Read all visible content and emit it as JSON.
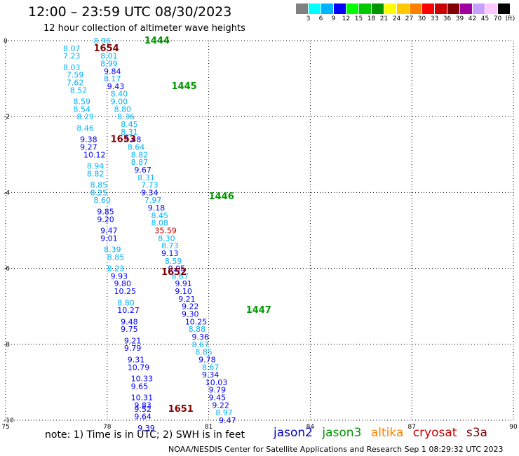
{
  "header": {
    "title": "12:00 – 23:59 UTC 08/30/2023",
    "subtitle": "12 hour collection of altimeter wave heights"
  },
  "color_scale": {
    "labels": [
      "3",
      "6",
      "9",
      "12",
      "15",
      "18",
      "21",
      "24",
      "27",
      "30",
      "33",
      "36",
      "39",
      "42",
      "45",
      "70",
      "(ft)"
    ],
    "colors": [
      "#808080",
      "#00ffff",
      "#00b4ff",
      "#0000ff",
      "#00ff00",
      "#00c800",
      "#009600",
      "#ffff00",
      "#ffc800",
      "#ff8000",
      "#ff0000",
      "#c80000",
      "#800000",
      "#a000a0",
      "#c8a0ff",
      "#ffc8ff",
      "#000000"
    ]
  },
  "axes": {
    "x_ticks": [
      "75",
      "78",
      "81",
      "84",
      "87",
      "90"
    ],
    "y_ticks": [
      "0",
      "-2",
      "-4",
      "-6",
      "-8",
      "-10"
    ]
  },
  "passes": [
    {
      "time": "1444",
      "color": "#009600",
      "lon": 79.1,
      "lat": 0.0
    },
    {
      "time": "1654",
      "color": "#800000",
      "lon": 77.6,
      "lat": -0.2
    },
    {
      "time": "1445",
      "color": "#009600",
      "lon": 79.9,
      "lat": -1.2
    },
    {
      "time": "1653",
      "color": "#800000",
      "lon": 78.1,
      "lat": -2.6
    },
    {
      "time": "1446",
      "color": "#009600",
      "lon": 81.0,
      "lat": -4.1
    },
    {
      "time": "1652",
      "color": "#800000",
      "lon": 79.6,
      "lat": -6.1
    },
    {
      "time": "1447",
      "color": "#009600",
      "lon": 82.1,
      "lat": -7.1
    },
    {
      "time": "1651",
      "color": "#800000",
      "lon": 79.8,
      "lat": -9.7
    }
  ],
  "tracks": [
    {
      "name": "track-1444",
      "points": [
        {
          "v": "8.96",
          "c": "#00b4ff",
          "lon": 77.6,
          "lat": 0.0
        },
        {
          "v": "8.01",
          "c": "#00b4ff",
          "lon": 77.8,
          "lat": -0.4
        },
        {
          "v": "8.99",
          "c": "#00b4ff",
          "lon": 77.8,
          "lat": -0.6
        },
        {
          "v": "9.84",
          "c": "#0000ff",
          "lon": 77.9,
          "lat": -0.8
        },
        {
          "v": "8.17",
          "c": "#00b4ff",
          "lon": 77.9,
          "lat": -1.0
        },
        {
          "v": "9.43",
          "c": "#0000ff",
          "lon": 78.0,
          "lat": -1.2
        },
        {
          "v": "8.40",
          "c": "#00b4ff",
          "lon": 78.1,
          "lat": -1.4
        },
        {
          "v": "9.00",
          "c": "#00b4ff",
          "lon": 78.1,
          "lat": -1.6
        },
        {
          "v": "8.80",
          "c": "#00b4ff",
          "lon": 78.2,
          "lat": -1.8
        },
        {
          "v": "8.36",
          "c": "#00b4ff",
          "lon": 78.3,
          "lat": -2.0
        },
        {
          "v": "8.45",
          "c": "#00b4ff",
          "lon": 78.4,
          "lat": -2.2
        },
        {
          "v": "8.31",
          "c": "#00b4ff",
          "lon": 78.4,
          "lat": -2.4
        },
        {
          "v": "9.48",
          "c": "#0000ff",
          "lon": 78.5,
          "lat": -2.6
        },
        {
          "v": "8.64",
          "c": "#00b4ff",
          "lon": 78.6,
          "lat": -2.8
        },
        {
          "v": "8.82",
          "c": "#00b4ff",
          "lon": 78.7,
          "lat": -3.0
        },
        {
          "v": "8.87",
          "c": "#00b4ff",
          "lon": 78.7,
          "lat": -3.2
        },
        {
          "v": "9.67",
          "c": "#0000ff",
          "lon": 78.8,
          "lat": -3.4
        },
        {
          "v": "8.31",
          "c": "#00b4ff",
          "lon": 78.9,
          "lat": -3.6
        },
        {
          "v": "7.73",
          "c": "#00b4ff",
          "lon": 79.0,
          "lat": -3.8
        },
        {
          "v": "9.34",
          "c": "#0000ff",
          "lon": 79.0,
          "lat": -4.0
        },
        {
          "v": "7.97",
          "c": "#00b4ff",
          "lon": 79.1,
          "lat": -4.2
        },
        {
          "v": "9.18",
          "c": "#0000ff",
          "lon": 79.2,
          "lat": -4.4
        },
        {
          "v": "8.45",
          "c": "#00b4ff",
          "lon": 79.3,
          "lat": -4.6
        },
        {
          "v": "8.08",
          "c": "#00b4ff",
          "lon": 79.3,
          "lat": -4.8
        },
        {
          "v": "35.59",
          "c": "#c80000",
          "lon": 79.4,
          "lat": -5.0
        },
        {
          "v": "8.30",
          "c": "#00b4ff",
          "lon": 79.5,
          "lat": -5.2
        },
        {
          "v": "8.73",
          "c": "#00b4ff",
          "lon": 79.6,
          "lat": -5.4
        },
        {
          "v": "9.13",
          "c": "#0000ff",
          "lon": 79.6,
          "lat": -5.6
        },
        {
          "v": "8.59",
          "c": "#00b4ff",
          "lon": 79.7,
          "lat": -5.8
        },
        {
          "v": "9.05",
          "c": "#0000ff",
          "lon": 79.8,
          "lat": -6.0
        },
        {
          "v": "8.67",
          "c": "#00b4ff",
          "lon": 79.9,
          "lat": -6.2
        },
        {
          "v": "9.91",
          "c": "#0000ff",
          "lon": 80.0,
          "lat": -6.4
        },
        {
          "v": "9.10",
          "c": "#0000ff",
          "lon": 80.0,
          "lat": -6.6
        },
        {
          "v": "9.21",
          "c": "#0000ff",
          "lon": 80.1,
          "lat": -6.8
        },
        {
          "v": "9.22",
          "c": "#0000ff",
          "lon": 80.2,
          "lat": -7.0
        },
        {
          "v": "9.30",
          "c": "#0000ff",
          "lon": 80.2,
          "lat": -7.2
        },
        {
          "v": "10.25",
          "c": "#0000ff",
          "lon": 80.3,
          "lat": -7.4
        },
        {
          "v": "8.88",
          "c": "#00b4ff",
          "lon": 80.4,
          "lat": -7.6
        },
        {
          "v": "9.36",
          "c": "#0000ff",
          "lon": 80.5,
          "lat": -7.8
        },
        {
          "v": "8.67",
          "c": "#00b4ff",
          "lon": 80.5,
          "lat": -8.0
        },
        {
          "v": "8.85",
          "c": "#00b4ff",
          "lon": 80.6,
          "lat": -8.2
        },
        {
          "v": "9.78",
          "c": "#0000ff",
          "lon": 80.7,
          "lat": -8.4
        },
        {
          "v": "8.67",
          "c": "#00b4ff",
          "lon": 80.8,
          "lat": -8.6
        },
        {
          "v": "9.34",
          "c": "#0000ff",
          "lon": 80.8,
          "lat": -8.8
        },
        {
          "v": "10.03",
          "c": "#0000ff",
          "lon": 80.9,
          "lat": -9.0
        },
        {
          "v": "9.79",
          "c": "#0000ff",
          "lon": 81.0,
          "lat": -9.2
        },
        {
          "v": "9.45",
          "c": "#0000ff",
          "lon": 81.0,
          "lat": -9.4
        },
        {
          "v": "9.22",
          "c": "#0000ff",
          "lon": 81.1,
          "lat": -9.6
        },
        {
          "v": "8.97",
          "c": "#00b4ff",
          "lon": 81.2,
          "lat": -9.8
        },
        {
          "v": "9.47",
          "c": "#0000ff",
          "lon": 81.3,
          "lat": -10.0
        }
      ]
    },
    {
      "name": "track-1654",
      "points": [
        {
          "v": "8.07",
          "c": "#00b4ff",
          "lon": 76.7,
          "lat": -0.2
        },
        {
          "v": "7.23",
          "c": "#00b4ff",
          "lon": 76.7,
          "lat": -0.4
        },
        {
          "v": "8.03",
          "c": "#00b4ff",
          "lon": 76.7,
          "lat": -0.7
        },
        {
          "v": "7.59",
          "c": "#00b4ff",
          "lon": 76.8,
          "lat": -0.9
        },
        {
          "v": "7.62",
          "c": "#00b4ff",
          "lon": 76.8,
          "lat": -1.1
        },
        {
          "v": "8.52",
          "c": "#00b4ff",
          "lon": 76.9,
          "lat": -1.3
        },
        {
          "v": "8.59",
          "c": "#00b4ff",
          "lon": 77.0,
          "lat": -1.6
        },
        {
          "v": "8.54",
          "c": "#00b4ff",
          "lon": 77.0,
          "lat": -1.8
        },
        {
          "v": "8.29",
          "c": "#00b4ff",
          "lon": 77.1,
          "lat": -2.0
        },
        {
          "v": "8.46",
          "c": "#00b4ff",
          "lon": 77.1,
          "lat": -2.3
        },
        {
          "v": "9.38",
          "c": "#0000ff",
          "lon": 77.2,
          "lat": -2.6
        },
        {
          "v": "9.27",
          "c": "#0000ff",
          "lon": 77.2,
          "lat": -2.8
        },
        {
          "v": "10.12",
          "c": "#0000ff",
          "lon": 77.3,
          "lat": -3.0
        },
        {
          "v": "8.94",
          "c": "#00b4ff",
          "lon": 77.4,
          "lat": -3.3
        },
        {
          "v": "8.82",
          "c": "#00b4ff",
          "lon": 77.4,
          "lat": -3.5
        },
        {
          "v": "8.85",
          "c": "#00b4ff",
          "lon": 77.5,
          "lat": -3.8
        },
        {
          "v": "8.25",
          "c": "#00b4ff",
          "lon": 77.5,
          "lat": -4.0
        },
        {
          "v": "8.60",
          "c": "#00b4ff",
          "lon": 77.6,
          "lat": -4.2
        },
        {
          "v": "9.85",
          "c": "#0000ff",
          "lon": 77.7,
          "lat": -4.5
        },
        {
          "v": "9.20",
          "c": "#0000ff",
          "lon": 77.7,
          "lat": -4.7
        },
        {
          "v": "9.47",
          "c": "#0000ff",
          "lon": 77.8,
          "lat": -5.0
        },
        {
          "v": "9.01",
          "c": "#0000ff",
          "lon": 77.8,
          "lat": -5.2
        },
        {
          "v": "8.39",
          "c": "#00b4ff",
          "lon": 77.9,
          "lat": -5.5
        },
        {
          "v": "8.85",
          "c": "#00b4ff",
          "lon": 78.0,
          "lat": -5.7
        },
        {
          "v": "8.23",
          "c": "#00b4ff",
          "lon": 78.0,
          "lat": -6.0
        },
        {
          "v": "9.93",
          "c": "#0000ff",
          "lon": 78.1,
          "lat": -6.2
        }
      ]
    },
    {
      "name": "track-1652",
      "points": [
        {
          "v": "9.80",
          "c": "#0000ff",
          "lon": 78.2,
          "lat": -6.4
        },
        {
          "v": "10.25",
          "c": "#0000ff",
          "lon": 78.2,
          "lat": -6.6
        },
        {
          "v": "8.80",
          "c": "#00b4ff",
          "lon": 78.3,
          "lat": -6.9
        },
        {
          "v": "10.27",
          "c": "#0000ff",
          "lon": 78.3,
          "lat": -7.1
        },
        {
          "v": "9.48",
          "c": "#0000ff",
          "lon": 78.4,
          "lat": -7.4
        },
        {
          "v": "9.75",
          "c": "#0000ff",
          "lon": 78.4,
          "lat": -7.6
        },
        {
          "v": "9.21",
          "c": "#0000ff",
          "lon": 78.5,
          "lat": -7.9
        },
        {
          "v": "9.79",
          "c": "#0000ff",
          "lon": 78.5,
          "lat": -8.1
        },
        {
          "v": "9.31",
          "c": "#0000ff",
          "lon": 78.6,
          "lat": -8.4
        },
        {
          "v": "10.79",
          "c": "#0000ff",
          "lon": 78.6,
          "lat": -8.6
        },
        {
          "v": "10.33",
          "c": "#0000ff",
          "lon": 78.7,
          "lat": -8.9
        },
        {
          "v": "9.65",
          "c": "#0000ff",
          "lon": 78.7,
          "lat": -9.1
        },
        {
          "v": "10.31",
          "c": "#0000ff",
          "lon": 78.7,
          "lat": -9.4
        },
        {
          "v": "9.83",
          "c": "#0000ff",
          "lon": 78.8,
          "lat": -9.6
        },
        {
          "v": "9.52",
          "c": "#0000ff",
          "lon": 78.8,
          "lat": -9.7
        },
        {
          "v": "9.64",
          "c": "#0000ff",
          "lon": 78.8,
          "lat": -9.9
        },
        {
          "v": "9.39",
          "c": "#0000ff",
          "lon": 78.9,
          "lat": -10.2
        }
      ]
    }
  ],
  "note": "note:  1) Time is in UTC;  2) SWH is in feet",
  "satellites": [
    {
      "name": "jason2",
      "color": "#0000c8"
    },
    {
      "name": "jason3",
      "color": "#009600"
    },
    {
      "name": "altika",
      "color": "#ff8000"
    },
    {
      "name": "cryosat",
      "color": "#c80000"
    },
    {
      "name": "s3a",
      "color": "#800000"
    }
  ],
  "credit": "NOAA/NESDIS Center for Satellite Applications and Research    Sep  1 08:29:32 UTC 2023"
}
